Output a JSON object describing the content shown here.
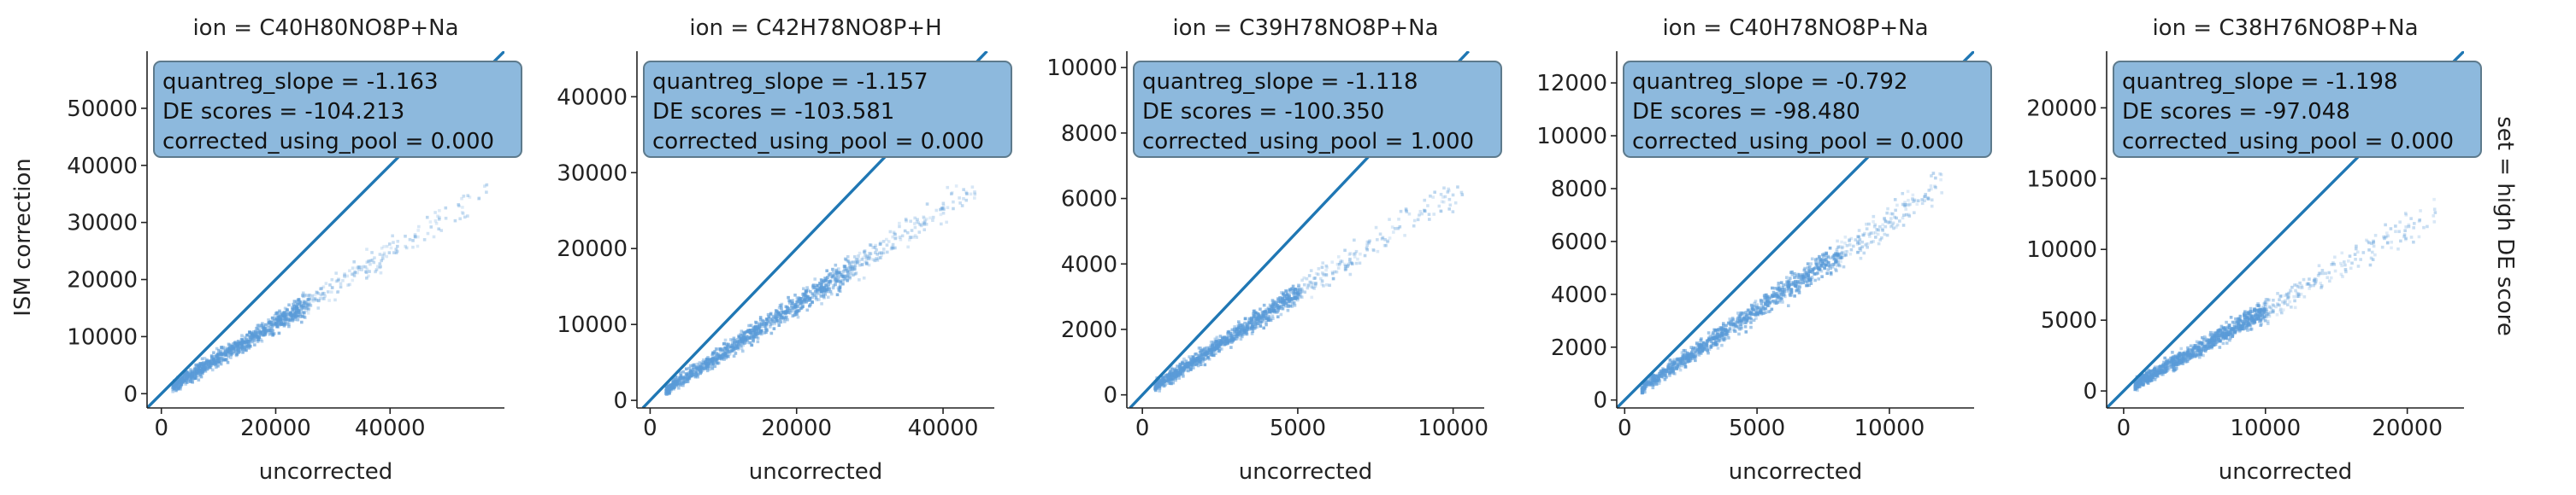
{
  "figure": {
    "ylabel": "ISM correction",
    "row_label": "set = high DE score",
    "diagonal_color": "#1f77b4",
    "point_color": "#5a9bd8",
    "annotation_bg": "#8db9dd",
    "annotation_border": "#5d7a8c"
  },
  "chart_data": [
    {
      "type": "scatter",
      "title": "ion = C40H80NO8P+Na",
      "xlabel": "uncorrected",
      "ylabel": "ISM correction",
      "xlim": [
        -2500,
        60000
      ],
      "ylim": [
        -2500,
        60000
      ],
      "xticks": [
        0,
        20000,
        40000
      ],
      "yticks": [
        0,
        10000,
        20000,
        30000,
        40000,
        50000
      ],
      "xtick_labels": [
        "0",
        "20000",
        "40000"
      ],
      "ytick_labels": [
        "0",
        "10000",
        "20000",
        "30000",
        "40000",
        "50000"
      ],
      "annotation": [
        "quantreg_slope = -1.163",
        "DE scores = -104.213",
        "corrected_using_pool = 0.000"
      ],
      "slope_fit": 0.62,
      "x_main_end": 25000,
      "x_max": 57000,
      "grid": false
    },
    {
      "type": "scatter",
      "title": "ion = C42H78NO8P+H",
      "xlabel": "uncorrected",
      "ylabel": "",
      "xlim": [
        -1800,
        47000
      ],
      "ylim": [
        -1000,
        46000
      ],
      "xticks": [
        0,
        20000,
        40000
      ],
      "yticks": [
        0,
        10000,
        20000,
        30000,
        40000
      ],
      "xtick_labels": [
        "0",
        "20000",
        "40000"
      ],
      "ytick_labels": [
        "0",
        "10000",
        "20000",
        "30000",
        "40000"
      ],
      "annotation": [
        "quantreg_slope = -1.157",
        "DE scores = -103.581",
        "corrected_using_pool = 0.000"
      ],
      "slope_fit": 0.63,
      "x_main_end": 27000,
      "x_max": 45000,
      "grid": false
    },
    {
      "type": "scatter",
      "title": "ion = C39H78NO8P+Na",
      "xlabel": "uncorrected",
      "ylabel": "",
      "xlim": [
        -500,
        11000
      ],
      "ylim": [
        -400,
        10500
      ],
      "xticks": [
        0,
        5000,
        10000
      ],
      "yticks": [
        0,
        2000,
        4000,
        6000,
        8000,
        10000
      ],
      "xtick_labels": [
        "0",
        "5000",
        "10000"
      ],
      "ytick_labels": [
        "0",
        "2000",
        "4000",
        "6000",
        "8000",
        "10000"
      ],
      "annotation": [
        "quantreg_slope = -1.118",
        "DE scores = -100.350",
        "corrected_using_pool = 1.000"
      ],
      "slope_fit": 0.62,
      "x_main_end": 5000,
      "x_max": 10300,
      "grid": false
    },
    {
      "type": "scatter",
      "title": "ion = C40H78NO8P+Na",
      "xlabel": "uncorrected",
      "ylabel": "",
      "xlim": [
        -300,
        13200
      ],
      "ylim": [
        -300,
        13200
      ],
      "xticks": [
        0,
        5000,
        10000
      ],
      "yticks": [
        0,
        2000,
        4000,
        6000,
        8000,
        10000,
        12000
      ],
      "xtick_labels": [
        "0",
        "5000",
        "10000"
      ],
      "ytick_labels": [
        "0",
        "2000",
        "4000",
        "6000",
        "8000",
        "10000",
        "12000"
      ],
      "annotation": [
        "quantreg_slope = -0.792",
        "DE scores = -98.480",
        "corrected_using_pool = 0.000"
      ],
      "slope_fit": 0.68,
      "x_main_end": 8000,
      "x_max": 12000,
      "grid": false
    },
    {
      "type": "scatter",
      "title": "ion = C38H76NO8P+Na",
      "xlabel": "uncorrected",
      "ylabel": "",
      "xlim": [
        -1200,
        24000
      ],
      "ylim": [
        -1200,
        24000
      ],
      "xticks": [
        0,
        10000,
        20000
      ],
      "yticks": [
        0,
        5000,
        10000,
        15000,
        20000
      ],
      "xtick_labels": [
        "0",
        "10000",
        "20000"
      ],
      "ytick_labels": [
        "0",
        "5000",
        "10000",
        "15000",
        "20000"
      ],
      "annotation": [
        "quantreg_slope = -1.198",
        "DE scores = -97.048",
        "corrected_using_pool = 0.000"
      ],
      "slope_fit": 0.57,
      "x_main_end": 10000,
      "x_max": 22000,
      "grid": false
    }
  ]
}
